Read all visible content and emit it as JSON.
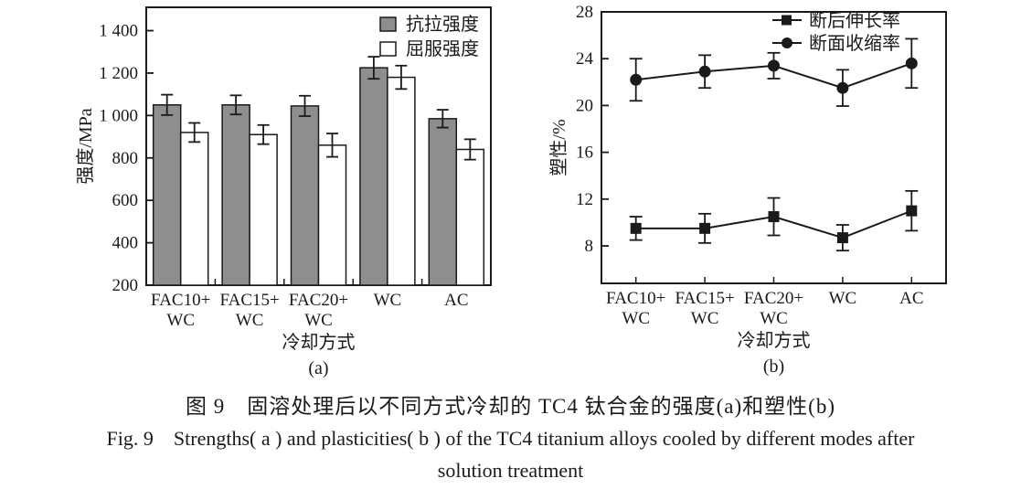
{
  "page": {
    "background": "#ffffff"
  },
  "colors": {
    "ink": "#1a1a1a",
    "bar_fill_gray": "#8e8e8e",
    "bar_fill_white": "#ffffff"
  },
  "chart_data": [
    {
      "id": "a",
      "type": "bar",
      "panel_label": "(a)",
      "xlabel": "冷却方式",
      "ylabel": "强度/MPa",
      "categories": [
        [
          "FAC10+",
          "WC"
        ],
        [
          "FAC15+",
          "WC"
        ],
        [
          "FAC20+",
          "WC"
        ],
        [
          "WC"
        ],
        [
          "AC"
        ]
      ],
      "ylim": [
        200,
        1510
      ],
      "yticks": [
        200,
        400,
        600,
        800,
        1000,
        1200,
        1400
      ],
      "ytick_labels": [
        "200",
        "400",
        "600",
        "800",
        "1 000",
        "1 200",
        "1 400"
      ],
      "grid": false,
      "legend_position": "top-right-inside",
      "series": [
        {
          "name": "抗拉强度",
          "fill": "#8e8e8e",
          "values": [
            1050,
            1050,
            1045,
            1225,
            985
          ],
          "errors": [
            48,
            45,
            48,
            52,
            42
          ]
        },
        {
          "name": "屈服强度",
          "fill": "#ffffff",
          "values": [
            920,
            910,
            860,
            1180,
            840
          ],
          "errors": [
            45,
            45,
            55,
            55,
            48
          ]
        }
      ]
    },
    {
      "id": "b",
      "type": "line",
      "panel_label": "(b)",
      "xlabel": "冷却方式",
      "ylabel": "塑性/%",
      "categories": [
        [
          "FAC10+",
          "WC"
        ],
        [
          "FAC15+",
          "WC"
        ],
        [
          "FAC20+",
          "WC"
        ],
        [
          "WC"
        ],
        [
          "AC"
        ]
      ],
      "ylim": [
        4.8,
        28
      ],
      "yticks": [
        8,
        12,
        16,
        20,
        24,
        28
      ],
      "ytick_labels": [
        "8",
        "12",
        "16",
        "20",
        "24",
        "28"
      ],
      "grid": false,
      "legend_position": "top-right-inside",
      "series": [
        {
          "name": "断后伸长率",
          "marker": "square",
          "color": "#1a1a1a",
          "values": [
            9.5,
            9.5,
            10.5,
            8.7,
            11.0
          ],
          "errors": [
            1.0,
            1.25,
            1.6,
            1.1,
            1.7
          ]
        },
        {
          "name": "断面收缩率",
          "marker": "circle",
          "color": "#1a1a1a",
          "values": [
            22.2,
            22.9,
            23.4,
            21.5,
            23.6
          ],
          "errors": [
            1.8,
            1.4,
            1.1,
            1.55,
            2.1
          ]
        }
      ]
    }
  ],
  "caption": {
    "cn": "图 9　固溶处理后以不同方式冷却的 TC4 钛合金的强度(a)和塑性(b)",
    "en_line1": "Fig. 9　Strengths( a ) and plasticities( b ) of the TC4 titanium alloys cooled by different modes after",
    "en_line2": "solution treatment"
  }
}
